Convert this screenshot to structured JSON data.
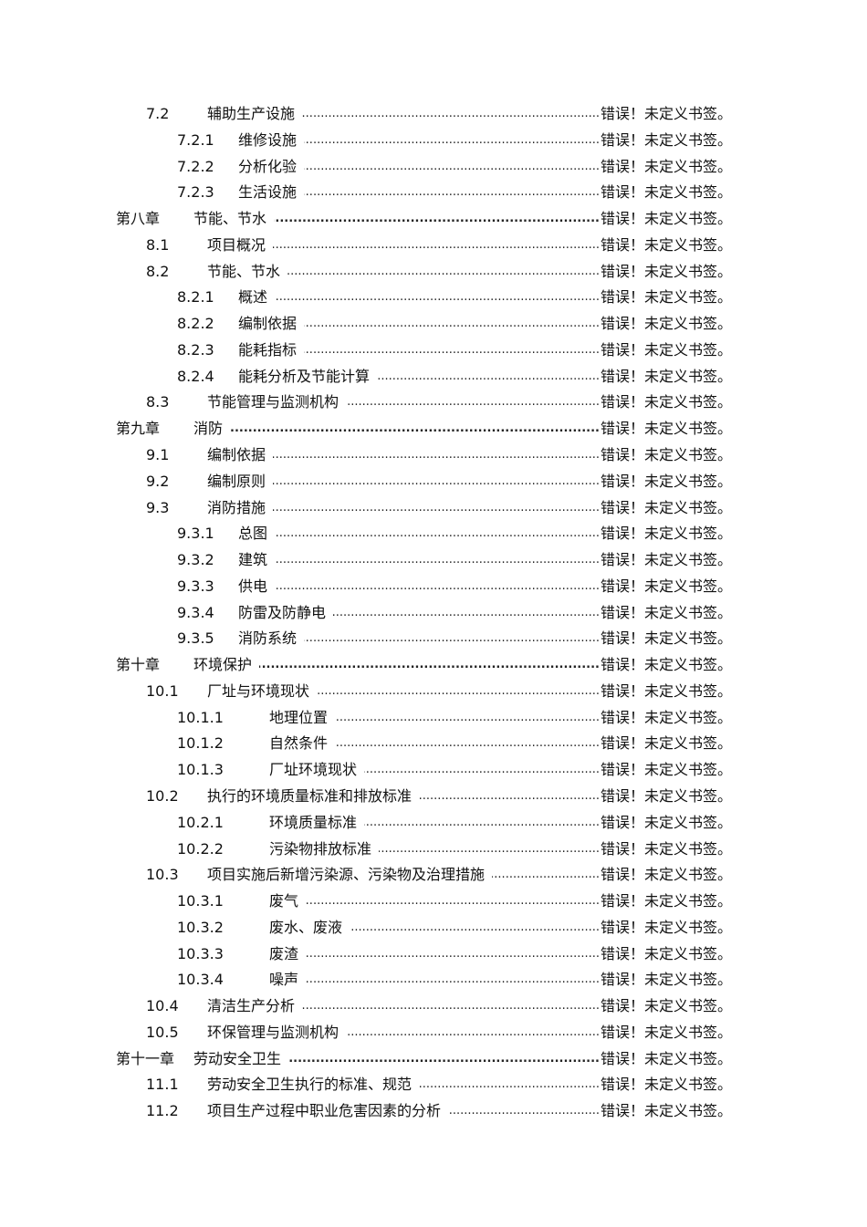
{
  "page_ref": "错误！未定义书签。",
  "entries": [
    {
      "num": "7.2",
      "title": "辅助生产设施",
      "level": 2
    },
    {
      "num": "7.2.1",
      "title": "维修设施",
      "level": 3
    },
    {
      "num": "7.2.2",
      "title": "分析化验",
      "level": 3
    },
    {
      "num": "7.2.3",
      "title": "生活设施",
      "level": 3
    },
    {
      "num": "第八章",
      "title": "节能、节水",
      "level": 1
    },
    {
      "num": "8.1",
      "title": "项目概况",
      "level": 2
    },
    {
      "num": "8.2",
      "title": "节能、节水",
      "level": 2
    },
    {
      "num": "8.2.1",
      "title": "概述",
      "level": 3
    },
    {
      "num": "8.2.2",
      "title": "编制依据",
      "level": 3
    },
    {
      "num": "8.2.3",
      "title": "能耗指标",
      "level": 3
    },
    {
      "num": "8.2.4",
      "title": "能耗分析及节能计算",
      "level": 3
    },
    {
      "num": "8.3",
      "title": "节能管理与监测机构",
      "level": 2
    },
    {
      "num": "第九章",
      "title": "消防",
      "level": 1
    },
    {
      "num": "9.1",
      "title": "编制依据",
      "level": 2
    },
    {
      "num": "9.2",
      "title": "编制原则",
      "level": 2
    },
    {
      "num": "9.3",
      "title": "消防措施",
      "level": 2
    },
    {
      "num": "9.3.1",
      "title": "总图",
      "level": 3
    },
    {
      "num": "9.3.2",
      "title": "建筑",
      "level": 3
    },
    {
      "num": "9.3.3",
      "title": "供电",
      "level": 3
    },
    {
      "num": "9.3.4",
      "title": "防雷及防静电",
      "level": 3
    },
    {
      "num": "9.3.5",
      "title": "消防系统",
      "level": 3
    },
    {
      "num": "第十章",
      "title": "环境保护",
      "level": 1
    },
    {
      "num": "10.1",
      "title": "厂址与环境现状",
      "level": 2
    },
    {
      "num": "10.1.1",
      "title": "地理位置",
      "level": 4
    },
    {
      "num": "10.1.2",
      "title": "自然条件",
      "level": 4
    },
    {
      "num": "10.1.3",
      "title": "厂址环境现状",
      "level": 4
    },
    {
      "num": "10.2",
      "title": "执行的环境质量标准和排放标准",
      "level": 2
    },
    {
      "num": "10.2.1",
      "title": "环境质量标准",
      "level": 4
    },
    {
      "num": "10.2.2",
      "title": "污染物排放标准",
      "level": 4
    },
    {
      "num": "10.3",
      "title": "项目实施后新增污染源、污染物及治理措施",
      "level": 2
    },
    {
      "num": "10.3.1",
      "title": "废气",
      "level": 4
    },
    {
      "num": "10.3.2",
      "title": "废水、废液",
      "level": 4
    },
    {
      "num": "10.3.3",
      "title": "废渣",
      "level": 4
    },
    {
      "num": "10.3.4",
      "title": "噪声",
      "level": 4
    },
    {
      "num": "10.4",
      "title": "清洁生产分析",
      "level": 2
    },
    {
      "num": "10.5",
      "title": "环保管理与监测机构",
      "level": 2
    },
    {
      "num": "第十一章",
      "title": "劳动安全卫生",
      "level": 1
    },
    {
      "num": "11.1",
      "title": "劳动安全卫生执行的标准、规范",
      "level": 2
    },
    {
      "num": "11.2",
      "title": "项目生产过程中职业危害因素的分析",
      "level": 2
    }
  ]
}
